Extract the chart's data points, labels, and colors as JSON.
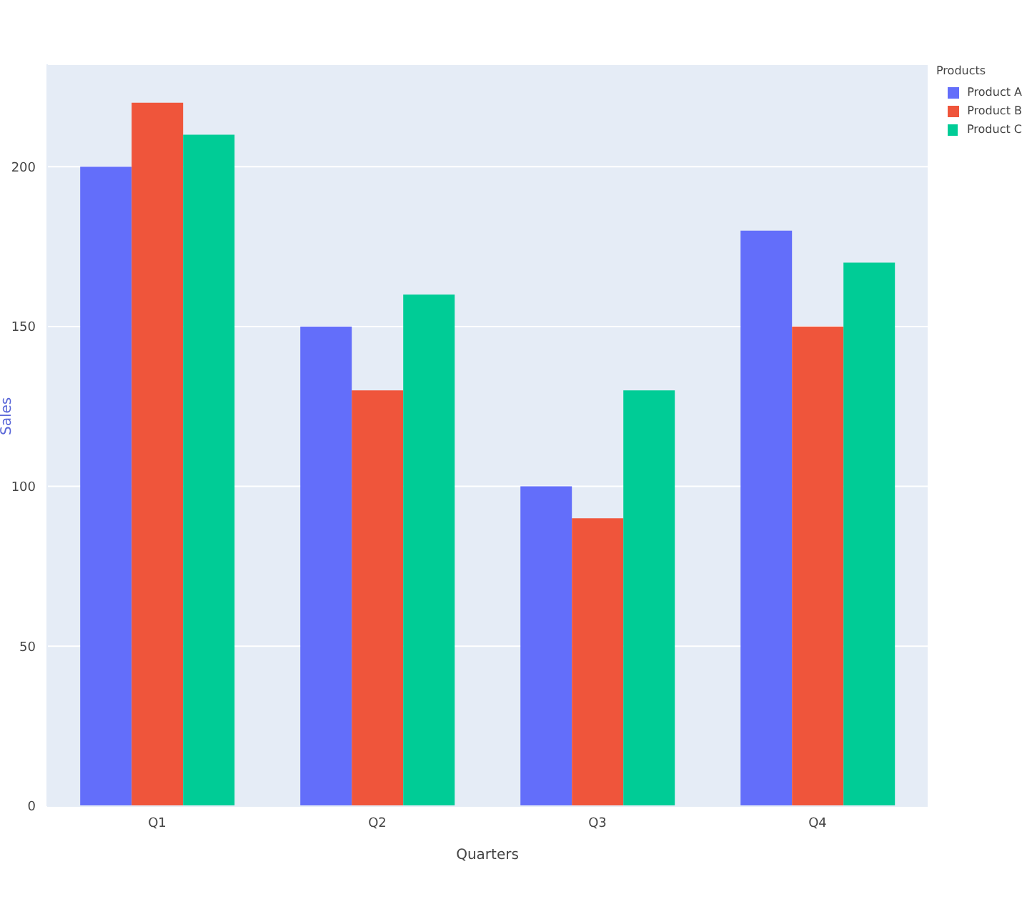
{
  "chart_data": {
    "type": "bar",
    "xlabel": "Quarters",
    "ylabel": "Sales",
    "legend_title": "Products",
    "categories": [
      "Q1",
      "Q2",
      "Q3",
      "Q4"
    ],
    "series": [
      {
        "name": "Product A",
        "color": "#636efa",
        "values": [
          200,
          150,
          100,
          180
        ]
      },
      {
        "name": "Product B",
        "color": "#ef553b",
        "values": [
          220,
          130,
          90,
          150
        ]
      },
      {
        "name": "Product C",
        "color": "#00cc96",
        "values": [
          210,
          160,
          130,
          170
        ]
      }
    ],
    "ylim": [
      0,
      232
    ],
    "yticks": [
      0,
      50,
      100,
      150,
      200
    ],
    "grid": "y",
    "legend": "top right"
  }
}
